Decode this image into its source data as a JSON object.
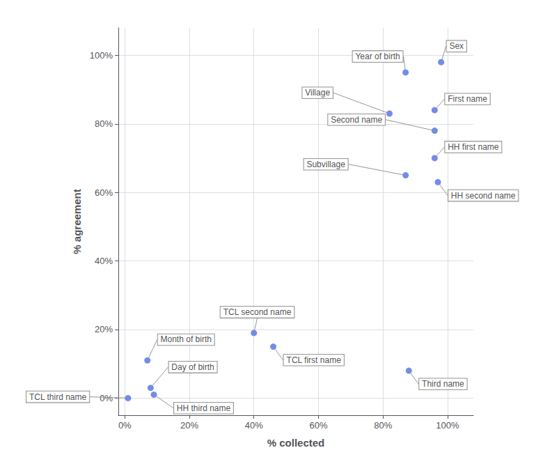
{
  "chart_data": {
    "type": "scatter",
    "x": [
      98,
      87,
      82,
      96,
      96,
      96,
      87,
      97,
      40,
      46,
      7,
      8,
      9,
      1,
      88
    ],
    "values": [
      98,
      95,
      83,
      84,
      78,
      70,
      65,
      63,
      19,
      15,
      11,
      3,
      1,
      0,
      8
    ],
    "annotations": [
      "Sex",
      "Year of birth",
      "Village",
      "First name",
      "Second name",
      "HH first name",
      "Subvillage",
      "HH second name",
      "TCL second name",
      "TCL first name",
      "Month of birth",
      "Day of birth",
      "HH third name",
      "TCL third name",
      "Third name"
    ],
    "xlabel": "% collected",
    "ylabel": "% agreement",
    "xlim": [
      -2,
      108
    ],
    "ylim": [
      -5,
      108
    ],
    "xticks": [
      {
        "value": 0,
        "label": "0%"
      },
      {
        "value": 20,
        "label": "20%"
      },
      {
        "value": 40,
        "label": "40%"
      },
      {
        "value": 60,
        "label": "60%"
      },
      {
        "value": 80,
        "label": "80%"
      },
      {
        "value": 100,
        "label": "100%"
      }
    ],
    "yticks": [
      {
        "value": 0,
        "label": "0%"
      },
      {
        "value": 20,
        "label": "20%"
      },
      {
        "value": 40,
        "label": "40%"
      },
      {
        "value": 60,
        "label": "60%"
      },
      {
        "value": 80,
        "label": "80%"
      },
      {
        "value": 100,
        "label": "100%"
      }
    ],
    "grid": true
  }
}
